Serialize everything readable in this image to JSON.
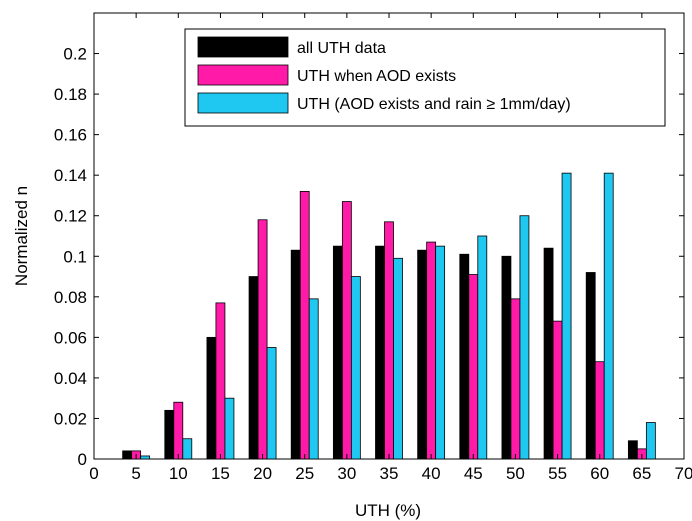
{
  "chart_data": {
    "type": "bar",
    "title": "",
    "xlabel": "UTH (%)",
    "ylabel": "Normalized n",
    "xlim": [
      0,
      70
    ],
    "ylim": [
      0,
      0.22
    ],
    "grid": false,
    "legend_position": "top-right",
    "x_ticks": [
      "0",
      "5",
      "10",
      "15",
      "20",
      "25",
      "30",
      "35",
      "40",
      "45",
      "50",
      "55",
      "60",
      "65",
      "70"
    ],
    "y_ticks": [
      "0",
      "0.02",
      "0.04",
      "0.06",
      "0.08",
      "0.1",
      "0.12",
      "0.14",
      "0.16",
      "0.18",
      "0.2"
    ],
    "x": [
      5,
      10,
      15,
      20,
      25,
      30,
      35,
      40,
      45,
      50,
      55,
      60,
      65
    ],
    "series": [
      {
        "name": "all UTH data",
        "color": "#000000",
        "values": [
          0.004,
          0.024,
          0.06,
          0.09,
          0.103,
          0.105,
          0.105,
          0.103,
          0.101,
          0.1,
          0.104,
          0.092,
          0.009
        ]
      },
      {
        "name": "UTH when AOD exists",
        "color": "#ff1aa8",
        "values": [
          0.004,
          0.028,
          0.077,
          0.118,
          0.132,
          0.127,
          0.117,
          0.107,
          0.091,
          0.079,
          0.068,
          0.048,
          0.005
        ]
      },
      {
        "name": "UTH (AOD exists and rain ≥ 1mm/day)",
        "color": "#1ec8f0",
        "values": [
          0.0015,
          0.01,
          0.03,
          0.055,
          0.079,
          0.09,
          0.099,
          0.105,
          0.11,
          0.12,
          0.141,
          0.141,
          0.018
        ]
      }
    ]
  }
}
